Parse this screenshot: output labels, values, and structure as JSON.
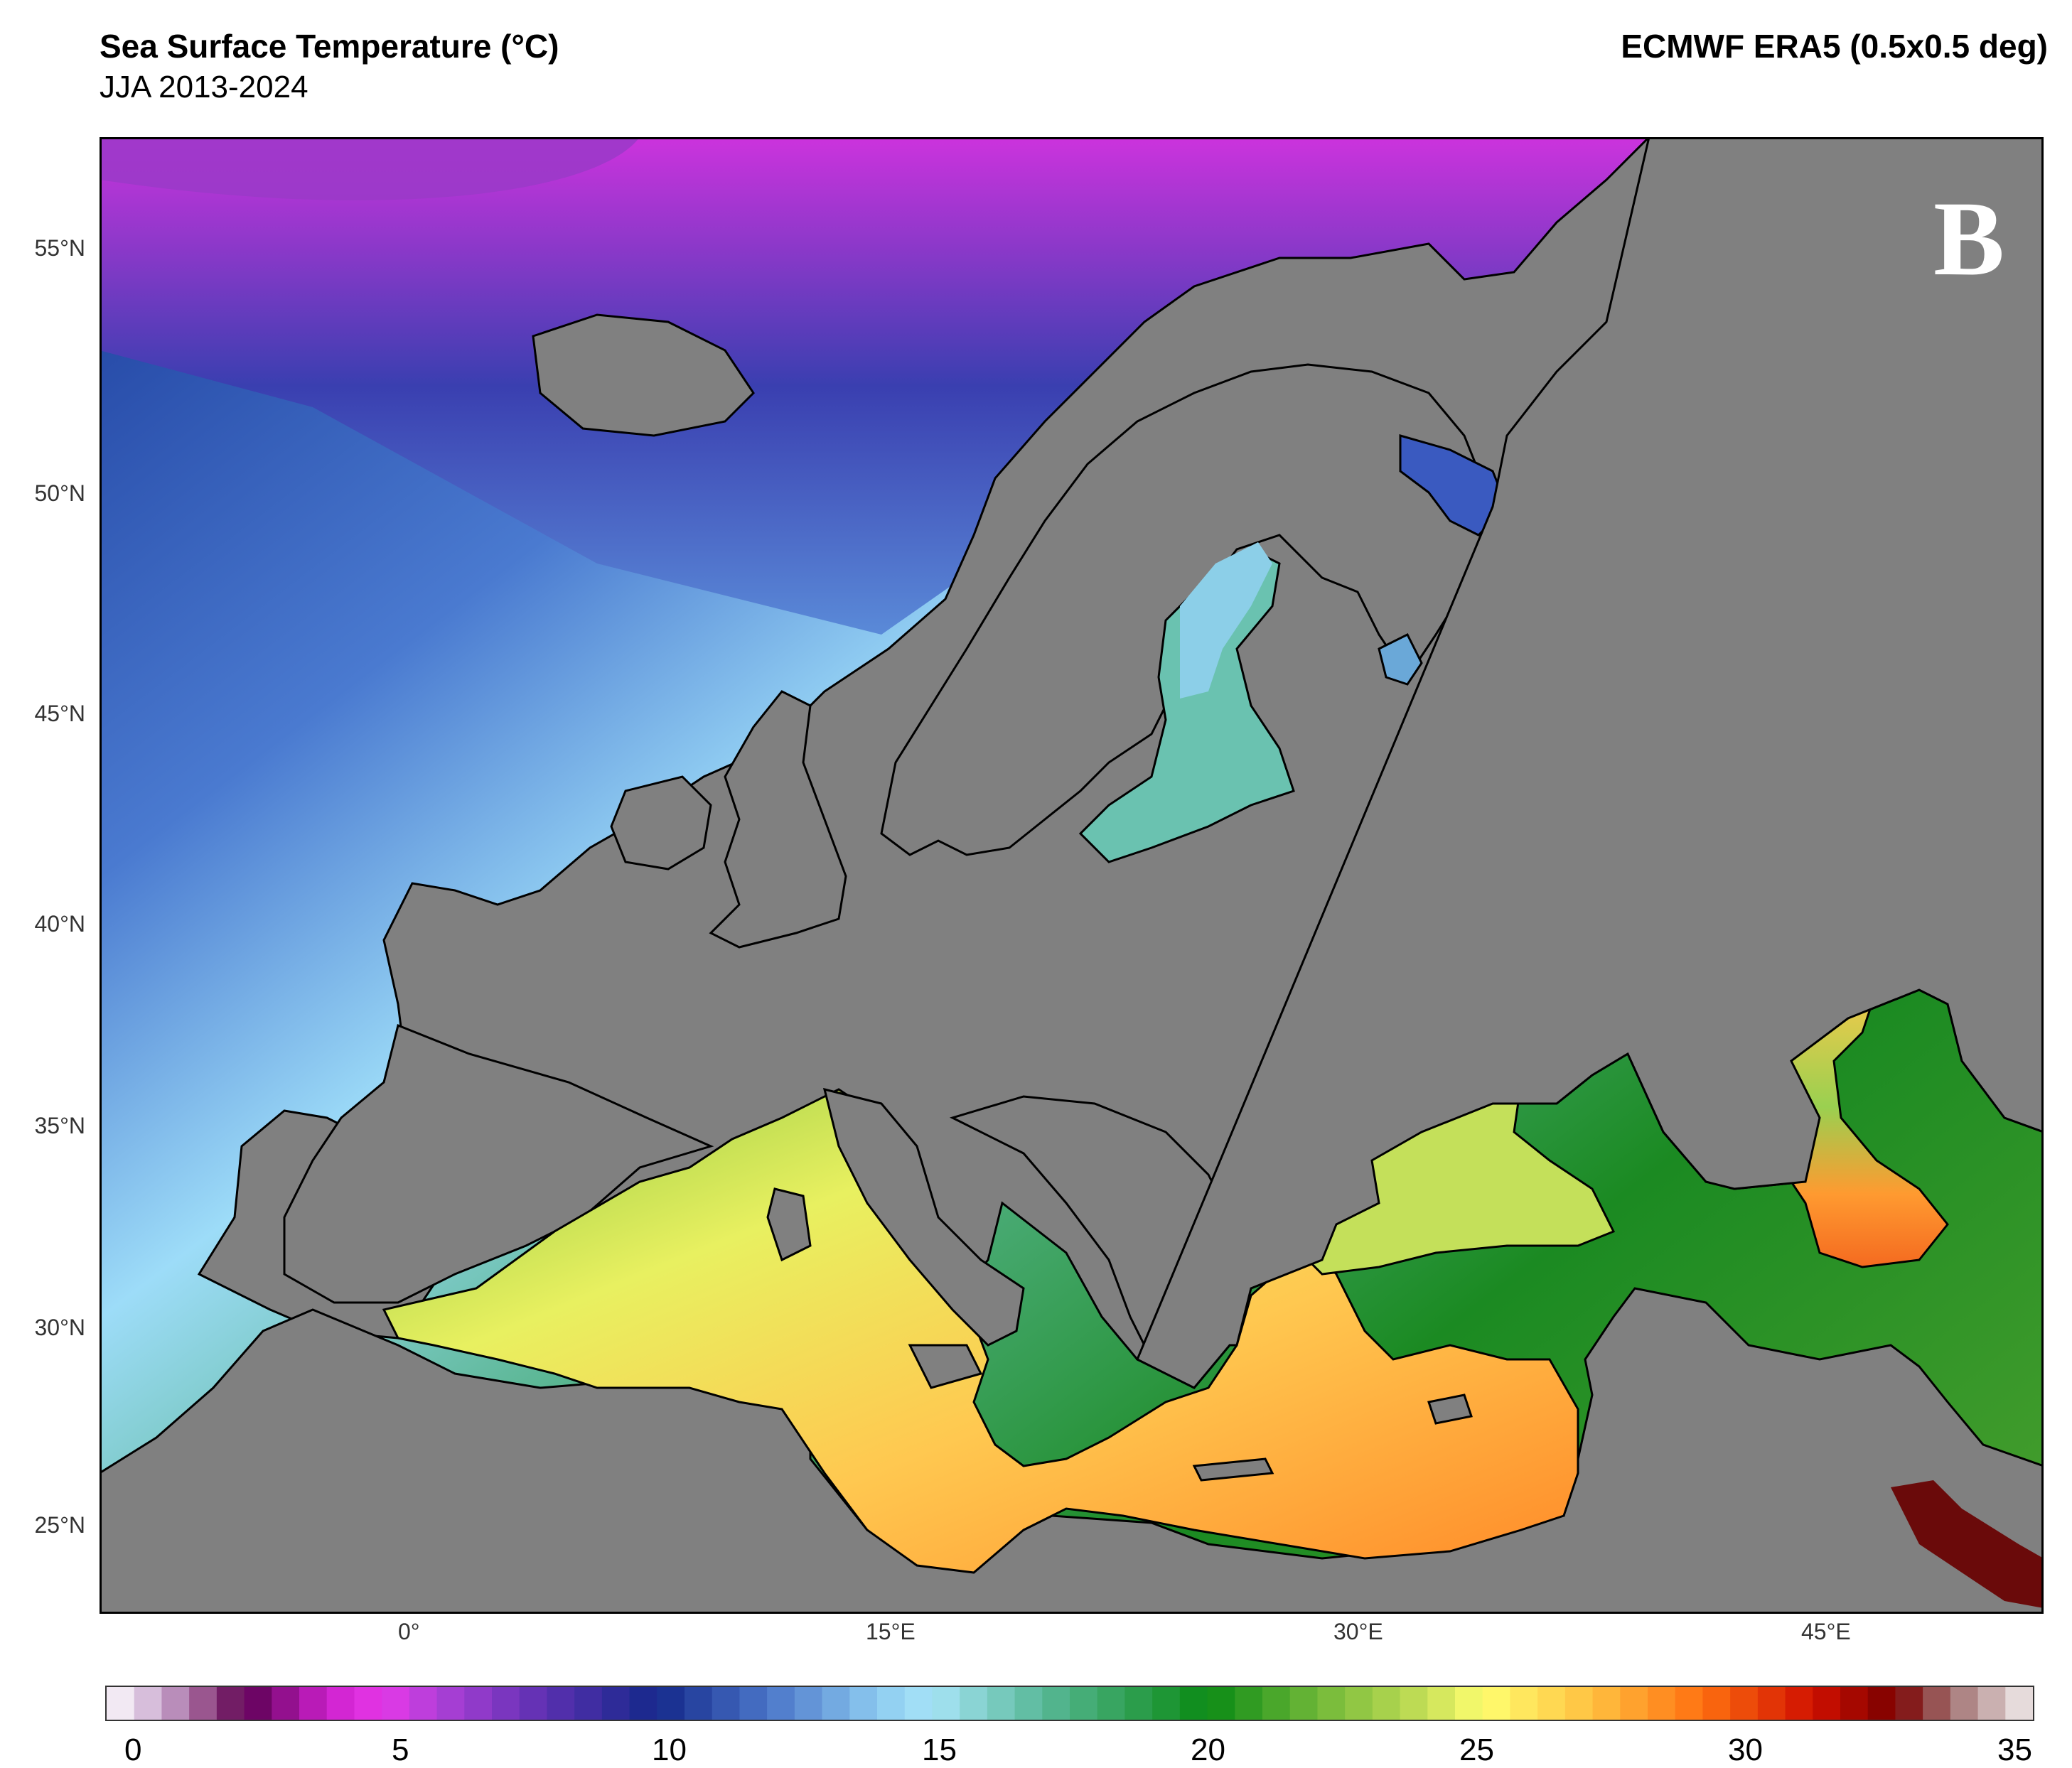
{
  "header": {
    "title": "Sea Surface Temperature (°C)",
    "subtitle": "JJA 2013-2024",
    "source": "ECMWF ERA5 (0.5x0.5 deg)",
    "panel_label": "B"
  },
  "axes": {
    "lat_ticks": [
      "55°N",
      "50°N",
      "45°N",
      "40°N",
      "35°N",
      "30°N",
      "25°N"
    ],
    "lon_ticks": [
      "0°",
      "15°E",
      "30°E",
      "45°E"
    ]
  },
  "colorbar": {
    "labels": [
      "0",
      "5",
      "10",
      "15",
      "20",
      "25",
      "30",
      "35"
    ],
    "min": 0,
    "max": 35,
    "step": 0.5
  },
  "colors": {
    "land": "#808080",
    "coast": "#000000"
  }
}
